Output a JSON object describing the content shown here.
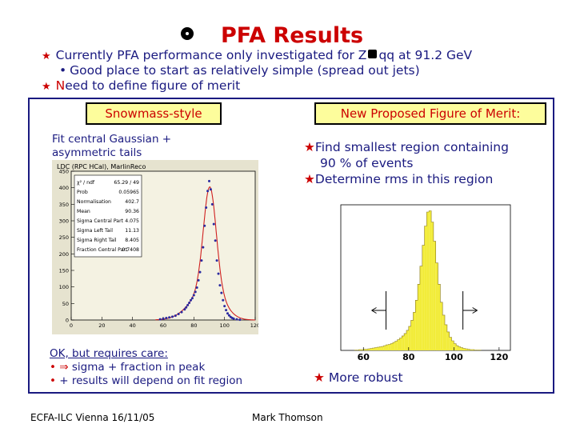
{
  "title": "PFA Results",
  "bullets": {
    "b1_prefix": "Currently PFA performance only investigated for Z",
    "b1_suffix": "qq  at 91.2 GeV",
    "b1_sub": "Good place to start as relatively simple (spread out jets)",
    "b2_N": "N",
    "b2_rest": "eed to define figure of merit"
  },
  "left": {
    "header": "Snowmass-style",
    "fit_line1": "Fit central Gaussian +",
    "fit_line2": "asymmetric tails",
    "plot_label": "LDC (RPC HCal), MarlinReco",
    "care_title": "OK, but requires care:",
    "care_line1": "sigma  + fraction in peak",
    "care_line2": "+ results will depend on fit region",
    "stats": [
      {
        "name": "χ² / ndf",
        "value": "65.29 / 49"
      },
      {
        "name": "Prob",
        "value": "0.05965"
      },
      {
        "name": "Normalisation",
        "value": "402.7"
      },
      {
        "name": "Mean",
        "value": "90.36"
      },
      {
        "name": "Sigma Central Part",
        "value": "4.075"
      },
      {
        "name": "Sigma Left Tail",
        "value": "11.13"
      },
      {
        "name": "Sigma Right Tail",
        "value": "8.405"
      },
      {
        "name": "Fraction Central Part",
        "value": "0.7408"
      }
    ]
  },
  "right": {
    "header_N": "N",
    "header_rest": "ew Proposed Figure of Merit:",
    "item1_a": "Find smallest region containing",
    "item1_b": "90 % of events",
    "item2": "Determine rms in this region",
    "more_robust": "More robust"
  },
  "footer": {
    "left": "ECFA-ILC Vienna 16/11/05",
    "center": "Mark Thomson"
  },
  "chart_data": [
    {
      "type": "scatter",
      "xlim": [
        0,
        120
      ],
      "ylim": [
        0,
        450
      ],
      "x_ticks": [
        "0",
        "20",
        "40",
        "60",
        "80",
        "100",
        "120"
      ],
      "y_ticks": [
        "0",
        "50",
        "100",
        "150",
        "200",
        "250",
        "300",
        "350",
        "400",
        "450"
      ],
      "fit_mean": 90.36,
      "fit_sigma_central": 4.075,
      "fit_sigma_left": 11.13,
      "fit_sigma_right": 8.405,
      "fit_fraction_central": 0.7408,
      "fit_peak": 402.7,
      "x": [
        58,
        60,
        62,
        64,
        66,
        68,
        70,
        72,
        74,
        75,
        76,
        77,
        78,
        79,
        80,
        81,
        82,
        83,
        84,
        85,
        86,
        87,
        88,
        89,
        90,
        91,
        92,
        93,
        94,
        95,
        96,
        97,
        98,
        99,
        100,
        101,
        102,
        103,
        104,
        105,
        106,
        108,
        110
      ],
      "y": [
        2,
        4,
        6,
        8,
        10,
        13,
        18,
        24,
        32,
        38,
        45,
        52,
        60,
        66,
        75,
        85,
        98,
        120,
        145,
        180,
        220,
        285,
        340,
        390,
        420,
        395,
        350,
        290,
        240,
        180,
        140,
        105,
        82,
        60,
        42,
        30,
        20,
        14,
        9,
        6,
        4,
        2,
        1
      ]
    },
    {
      "type": "bar",
      "x_ticks": [
        "60",
        "80",
        "100",
        "120"
      ],
      "xlim": [
        50,
        125
      ],
      "bins_start": 56,
      "bin_width": 1,
      "values": [
        1,
        1,
        2,
        2,
        3,
        3,
        4,
        5,
        6,
        7,
        8,
        9,
        10,
        12,
        14,
        15,
        17,
        20,
        23,
        27,
        31,
        36,
        42,
        50,
        60,
        75,
        95,
        125,
        165,
        210,
        262,
        310,
        345,
        348,
        320,
        272,
        218,
        165,
        120,
        88,
        64,
        46,
        33,
        24,
        17,
        12,
        9,
        7,
        5,
        4,
        3,
        2,
        2,
        1,
        1,
        1
      ],
      "highlight_min": 70,
      "highlight_max": 104
    }
  ]
}
